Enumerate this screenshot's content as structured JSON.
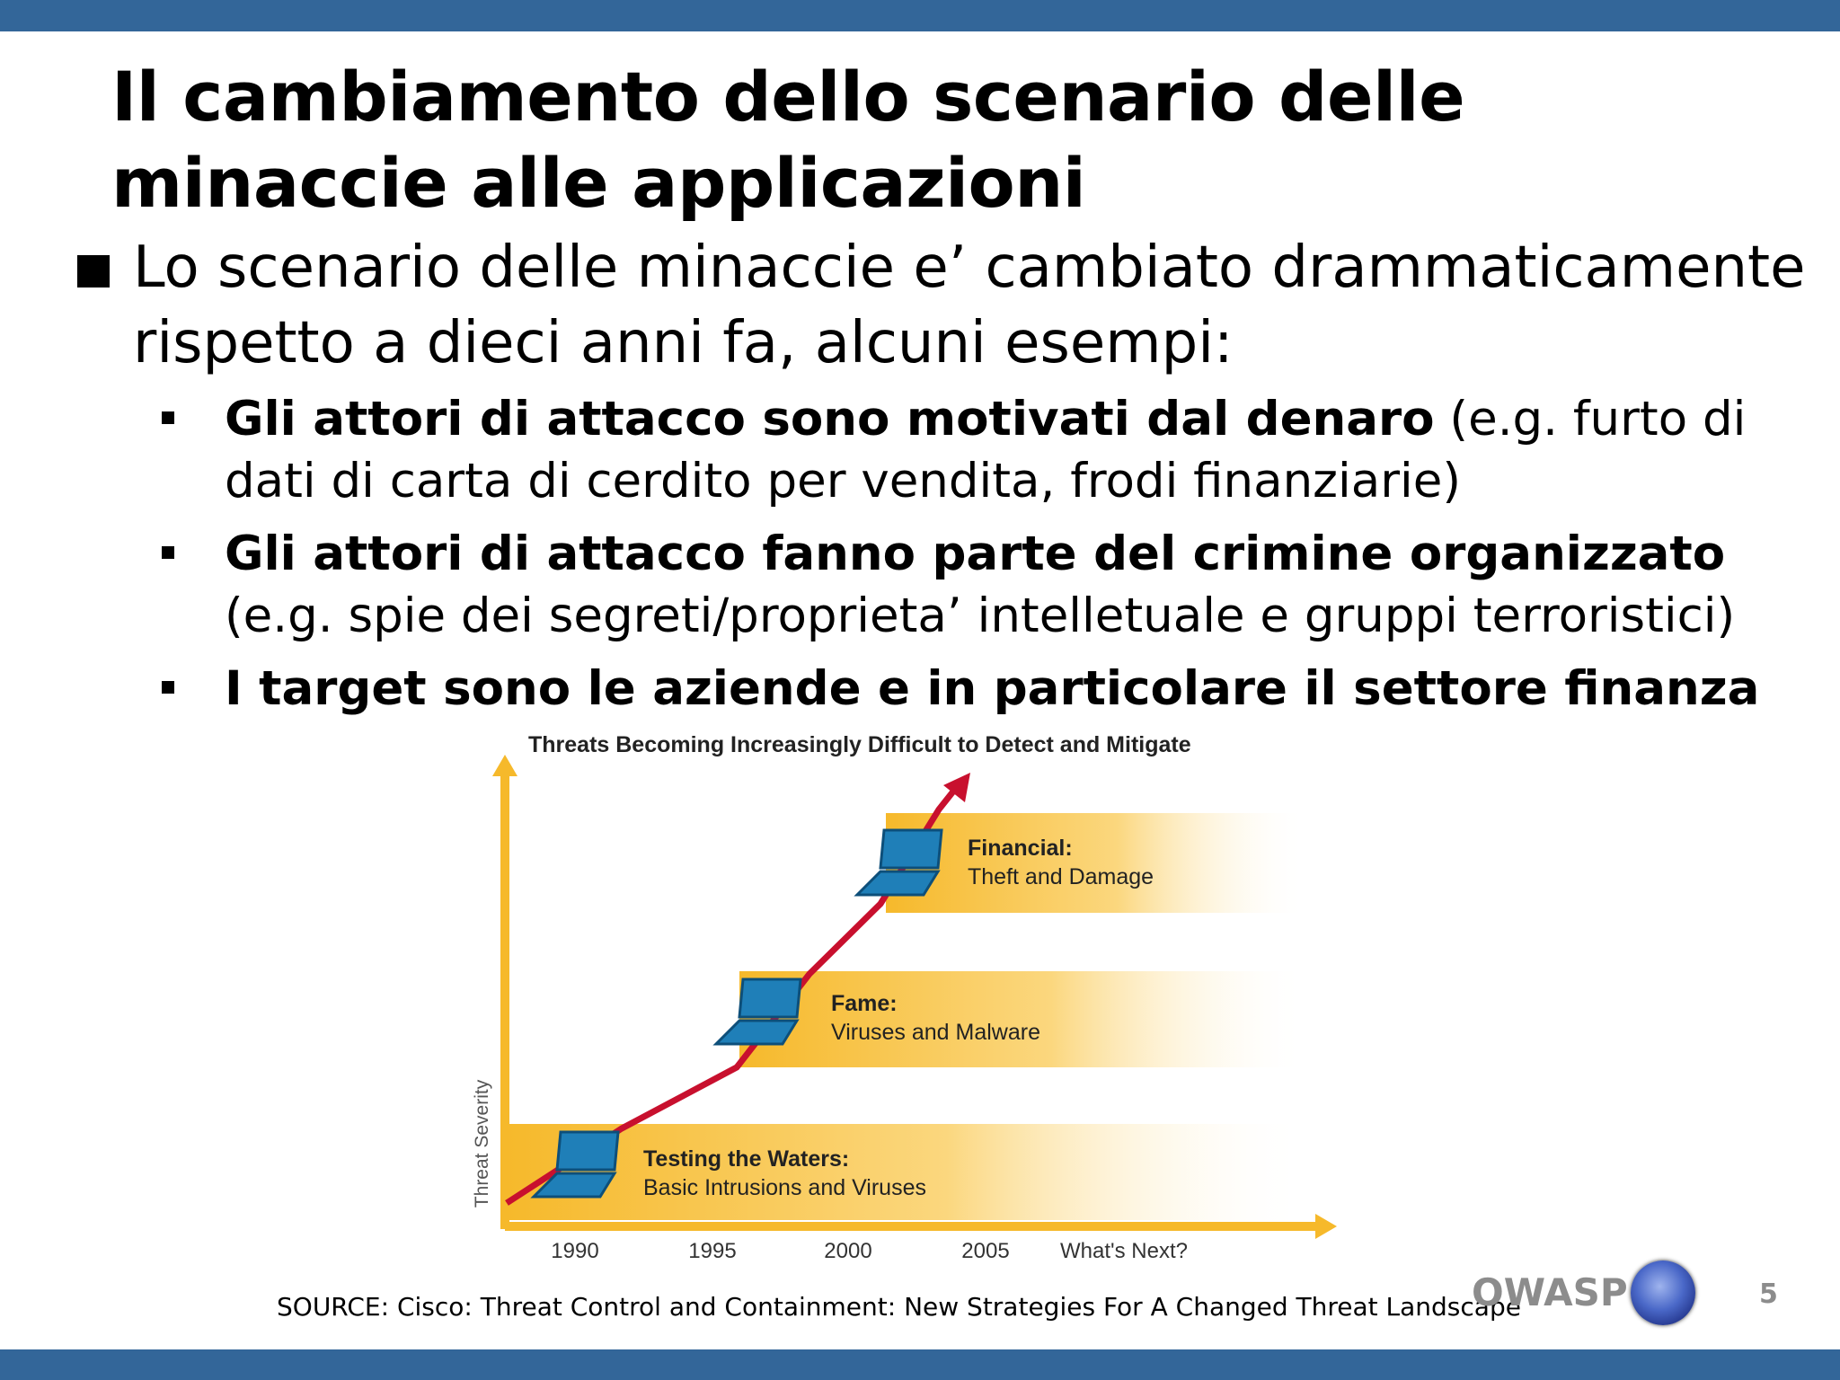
{
  "slide": {
    "title_lines": [
      "Il cambiamento dello scenario delle",
      "minaccie alle applicazioni"
    ],
    "main_bullet": "Lo scenario delle minaccie e’ cambiato drammaticamente rispetto a dieci anni fa, alcuni esempi:",
    "sub_bullets": [
      {
        "bold": "Gli attori di attacco sono motivati dal denaro",
        "rest": " (e.g. furto di dati di carta di cerdito per vendita, frodi finanziarie)"
      },
      {
        "bold": "Gli attori di attacco fanno parte del crimine organizzato",
        "rest": " (e.g. spie dei segreti/proprieta’ intelletuale e gruppi terroristici)"
      },
      {
        "bold": "I target sono le aziende e in particolare il settore finanza",
        "rest": ""
      }
    ],
    "source": "SOURCE: Cisco: Threat Control and Containment: New Strategies For A Changed Threat Landscape",
    "footer": {
      "brand": "OWASP",
      "page_number": "5"
    },
    "colors": {
      "bars": "#336699",
      "band": "#f6b92b",
      "trend": "#c8102e",
      "laptop": "#1f7fb8",
      "footer_text": "#8c8c8c"
    }
  },
  "figure": {
    "title": "Threats Becoming Increasingly Difficult to Detect and Mitigate",
    "y_axis_label": "Threat Severity",
    "x_ticks": [
      "1990",
      "1995",
      "2000",
      "2005",
      "What's Next?"
    ],
    "stages": [
      {
        "heading": "Testing the Waters:",
        "detail": "Basic Intrusions and Viruses",
        "icon": "laptop-icon"
      },
      {
        "heading": "Fame:",
        "detail": "Viruses and Malware",
        "icon": "laptop-icon"
      },
      {
        "heading": "Financial:",
        "detail": "Theft and Damage",
        "icon": "laptop-icon"
      }
    ]
  }
}
